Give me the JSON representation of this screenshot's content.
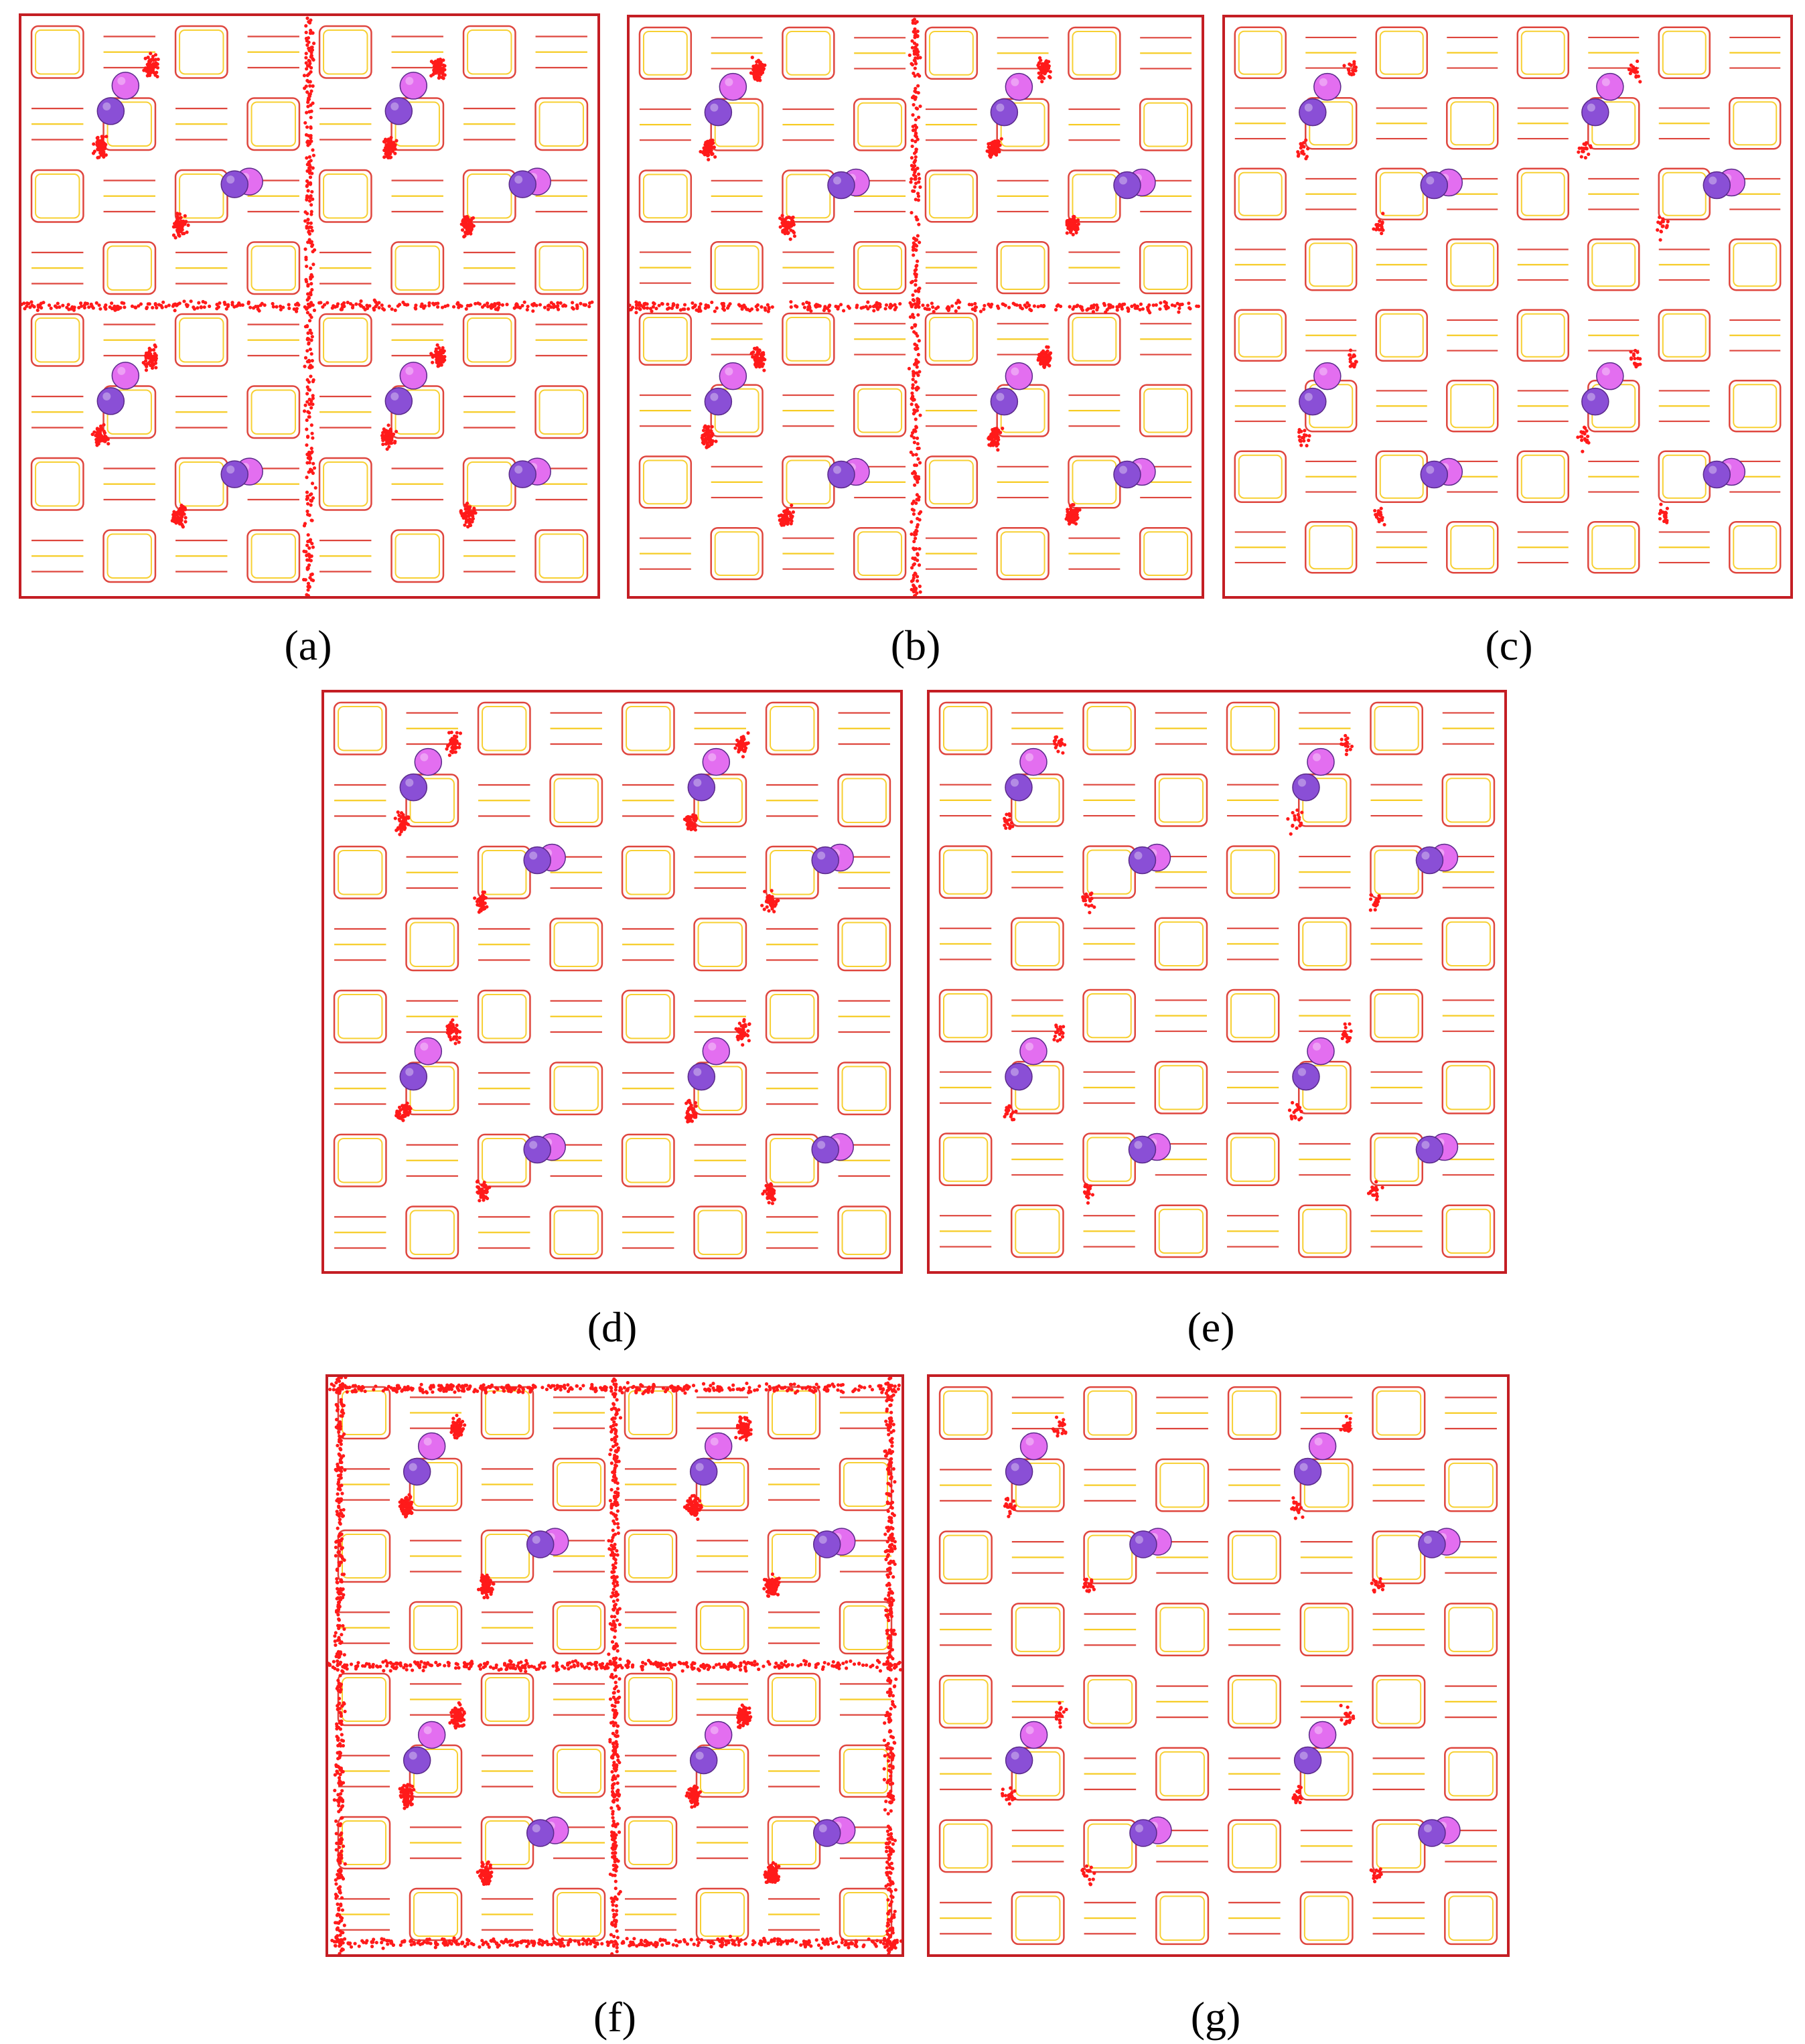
{
  "figure": {
    "panels": [
      {
        "id": "a",
        "label": "(a)",
        "density": "high"
      },
      {
        "id": "b",
        "label": "(b)",
        "density": "high"
      },
      {
        "id": "c",
        "label": "(c)",
        "density": "low"
      },
      {
        "id": "d",
        "label": "(d)",
        "density": "medium"
      },
      {
        "id": "e",
        "label": "(e)",
        "density": "low"
      },
      {
        "id": "f",
        "label": "(f)",
        "density": "very-high"
      },
      {
        "id": "g",
        "label": "(g)",
        "density": "low"
      }
    ],
    "colors": {
      "border": "#c41e24",
      "framework_red": "#d9261c",
      "framework_yellow": "#f5c400",
      "density_dots": "#ff1a1a",
      "atom_pink": "#e36ef0",
      "atom_purple": "#8a4fd6"
    }
  }
}
